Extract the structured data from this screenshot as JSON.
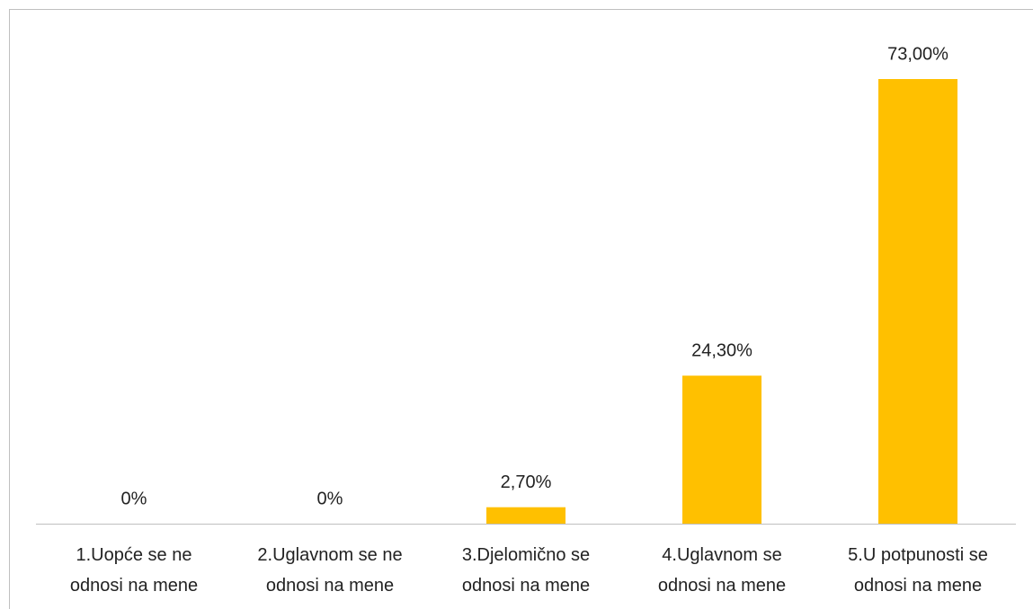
{
  "chart_data": {
    "type": "bar",
    "categories": [
      "1.Uopće se ne odnosi na mene",
      "2.Uglavnom se ne odnosi na mene",
      "3.Djelomično se odnosi na mene",
      "4.Uglavnom se odnosi na mene",
      "5.U potpunosti se odnosi na mene"
    ],
    "values": [
      0,
      0,
      2.7,
      24.3,
      73
    ],
    "value_labels": [
      "0%",
      "0%",
      "2,70%",
      "24,30%",
      "73,00%"
    ],
    "color": "#ffc000"
  }
}
